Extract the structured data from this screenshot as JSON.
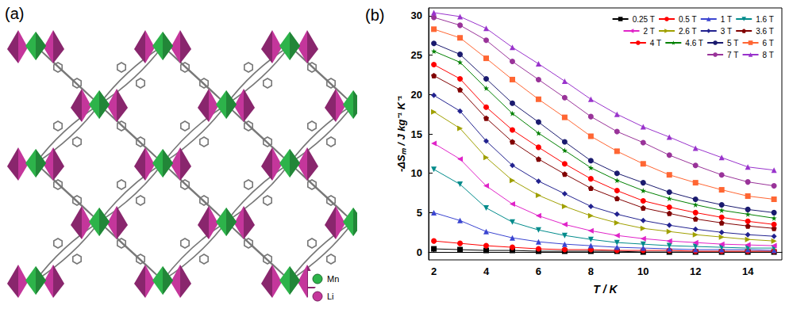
{
  "panel_a": {
    "label": "(a)",
    "legend": [
      {
        "name": "Mn",
        "color": "#2db34a"
      },
      {
        "name": "Li",
        "color": "#c4369b"
      }
    ]
  },
  "chart_data": {
    "type": "line",
    "title": "(b)",
    "x_label": "T / K",
    "y_label": "-ΔSₘ / J kg⁻¹ K⁻¹",
    "x": [
      2,
      3,
      4,
      5,
      6,
      7,
      8,
      9,
      10,
      11,
      12,
      13,
      14,
      15
    ],
    "xlim": [
      1.8,
      15.3
    ],
    "xticks": [
      2,
      4,
      6,
      8,
      10,
      12,
      14
    ],
    "ylim": [
      -1,
      31
    ],
    "yticks": [
      0,
      5,
      10,
      15,
      20,
      25,
      30
    ],
    "grid": false,
    "legend": "upper right",
    "series": [
      {
        "name": "0.25 T",
        "color": "#000000",
        "marker": "square",
        "values": [
          0.4,
          0.3,
          0.2,
          0.2,
          0.1,
          0.1,
          0.1,
          0.1,
          0,
          0,
          0,
          0,
          0,
          0
        ]
      },
      {
        "name": "0.5 T",
        "color": "#ff0000",
        "marker": "circle",
        "values": [
          1.4,
          1.1,
          0.8,
          0.6,
          0.4,
          0.3,
          0.3,
          0.2,
          0.2,
          0.2,
          0.1,
          0.1,
          0.1,
          0.1
        ]
      },
      {
        "name": "1 T",
        "color": "#3a44d0",
        "marker": "triangle",
        "values": [
          5.0,
          4.0,
          2.6,
          1.8,
          1.3,
          1.0,
          0.8,
          0.6,
          0.5,
          0.4,
          0.3,
          0.3,
          0.3,
          0.2
        ]
      },
      {
        "name": "1.6 T",
        "color": "#008b8b",
        "marker": "triangle-down",
        "values": [
          10.5,
          8.6,
          5.6,
          3.8,
          2.8,
          2.1,
          1.6,
          1.2,
          1.0,
          0.8,
          0.7,
          0.6,
          0.5,
          0.5
        ]
      },
      {
        "name": "2 T",
        "color": "#e024c8",
        "marker": "triangle-left",
        "values": [
          13.8,
          11.8,
          8.4,
          6.1,
          4.6,
          3.5,
          2.7,
          2.1,
          1.7,
          1.4,
          1.2,
          1.0,
          0.9,
          0.8
        ]
      },
      {
        "name": "2.6 T",
        "color": "#a0a000",
        "marker": "triangle-right",
        "values": [
          17.8,
          15.7,
          12.0,
          9.1,
          7.2,
          5.8,
          4.6,
          3.7,
          3.0,
          2.6,
          2.2,
          1.9,
          1.6,
          1.4
        ]
      },
      {
        "name": "3 T",
        "color": "#22228f",
        "marker": "diamond",
        "values": [
          19.9,
          17.9,
          14.1,
          11.0,
          9.0,
          7.4,
          5.8,
          4.8,
          4.0,
          3.4,
          2.9,
          2.5,
          2.2,
          2.0
        ]
      },
      {
        "name": "3.6 T",
        "color": "#800000",
        "marker": "pentagon",
        "values": [
          22.4,
          20.6,
          17.0,
          14.0,
          11.8,
          9.9,
          8.1,
          6.8,
          5.6,
          4.9,
          4.2,
          3.7,
          3.3,
          3.0
        ]
      },
      {
        "name": "4 T",
        "color": "#ff0000",
        "marker": "circle",
        "values": [
          23.8,
          22.0,
          18.4,
          15.5,
          13.3,
          11.2,
          9.3,
          7.8,
          6.5,
          5.7,
          5.0,
          4.4,
          3.9,
          3.5
        ]
      },
      {
        "name": "4.6 T",
        "color": "#008000",
        "marker": "star",
        "values": [
          25.5,
          24.1,
          20.8,
          17.6,
          15.1,
          12.9,
          10.7,
          9.1,
          7.8,
          6.8,
          6.0,
          5.3,
          4.8,
          4.3
        ]
      },
      {
        "name": "5 T",
        "color": "#1a1a6e",
        "marker": "circle",
        "values": [
          26.5,
          25.1,
          22.0,
          18.9,
          16.5,
          14.0,
          11.6,
          10.0,
          8.8,
          7.6,
          6.7,
          6.0,
          5.4,
          5.0
        ]
      },
      {
        "name": "6 T",
        "color": "#ff6633",
        "marker": "square",
        "values": [
          28.3,
          27.2,
          24.6,
          21.9,
          19.4,
          17.1,
          14.7,
          12.8,
          11.2,
          9.8,
          8.8,
          7.9,
          7.1,
          6.7
        ]
      },
      {
        "name": "7 T",
        "color": "#993399",
        "marker": "circle",
        "values": [
          29.8,
          28.8,
          26.9,
          24.2,
          21.9,
          19.6,
          17.2,
          15.3,
          13.9,
          12.3,
          11.0,
          9.8,
          8.9,
          8.4
        ]
      },
      {
        "name": "8 T",
        "color": "#9933cc",
        "marker": "triangle",
        "values": [
          30.4,
          29.9,
          28.4,
          26.0,
          23.9,
          21.7,
          19.4,
          17.5,
          15.9,
          14.6,
          13.2,
          12.0,
          10.8,
          10.4
        ]
      }
    ]
  }
}
